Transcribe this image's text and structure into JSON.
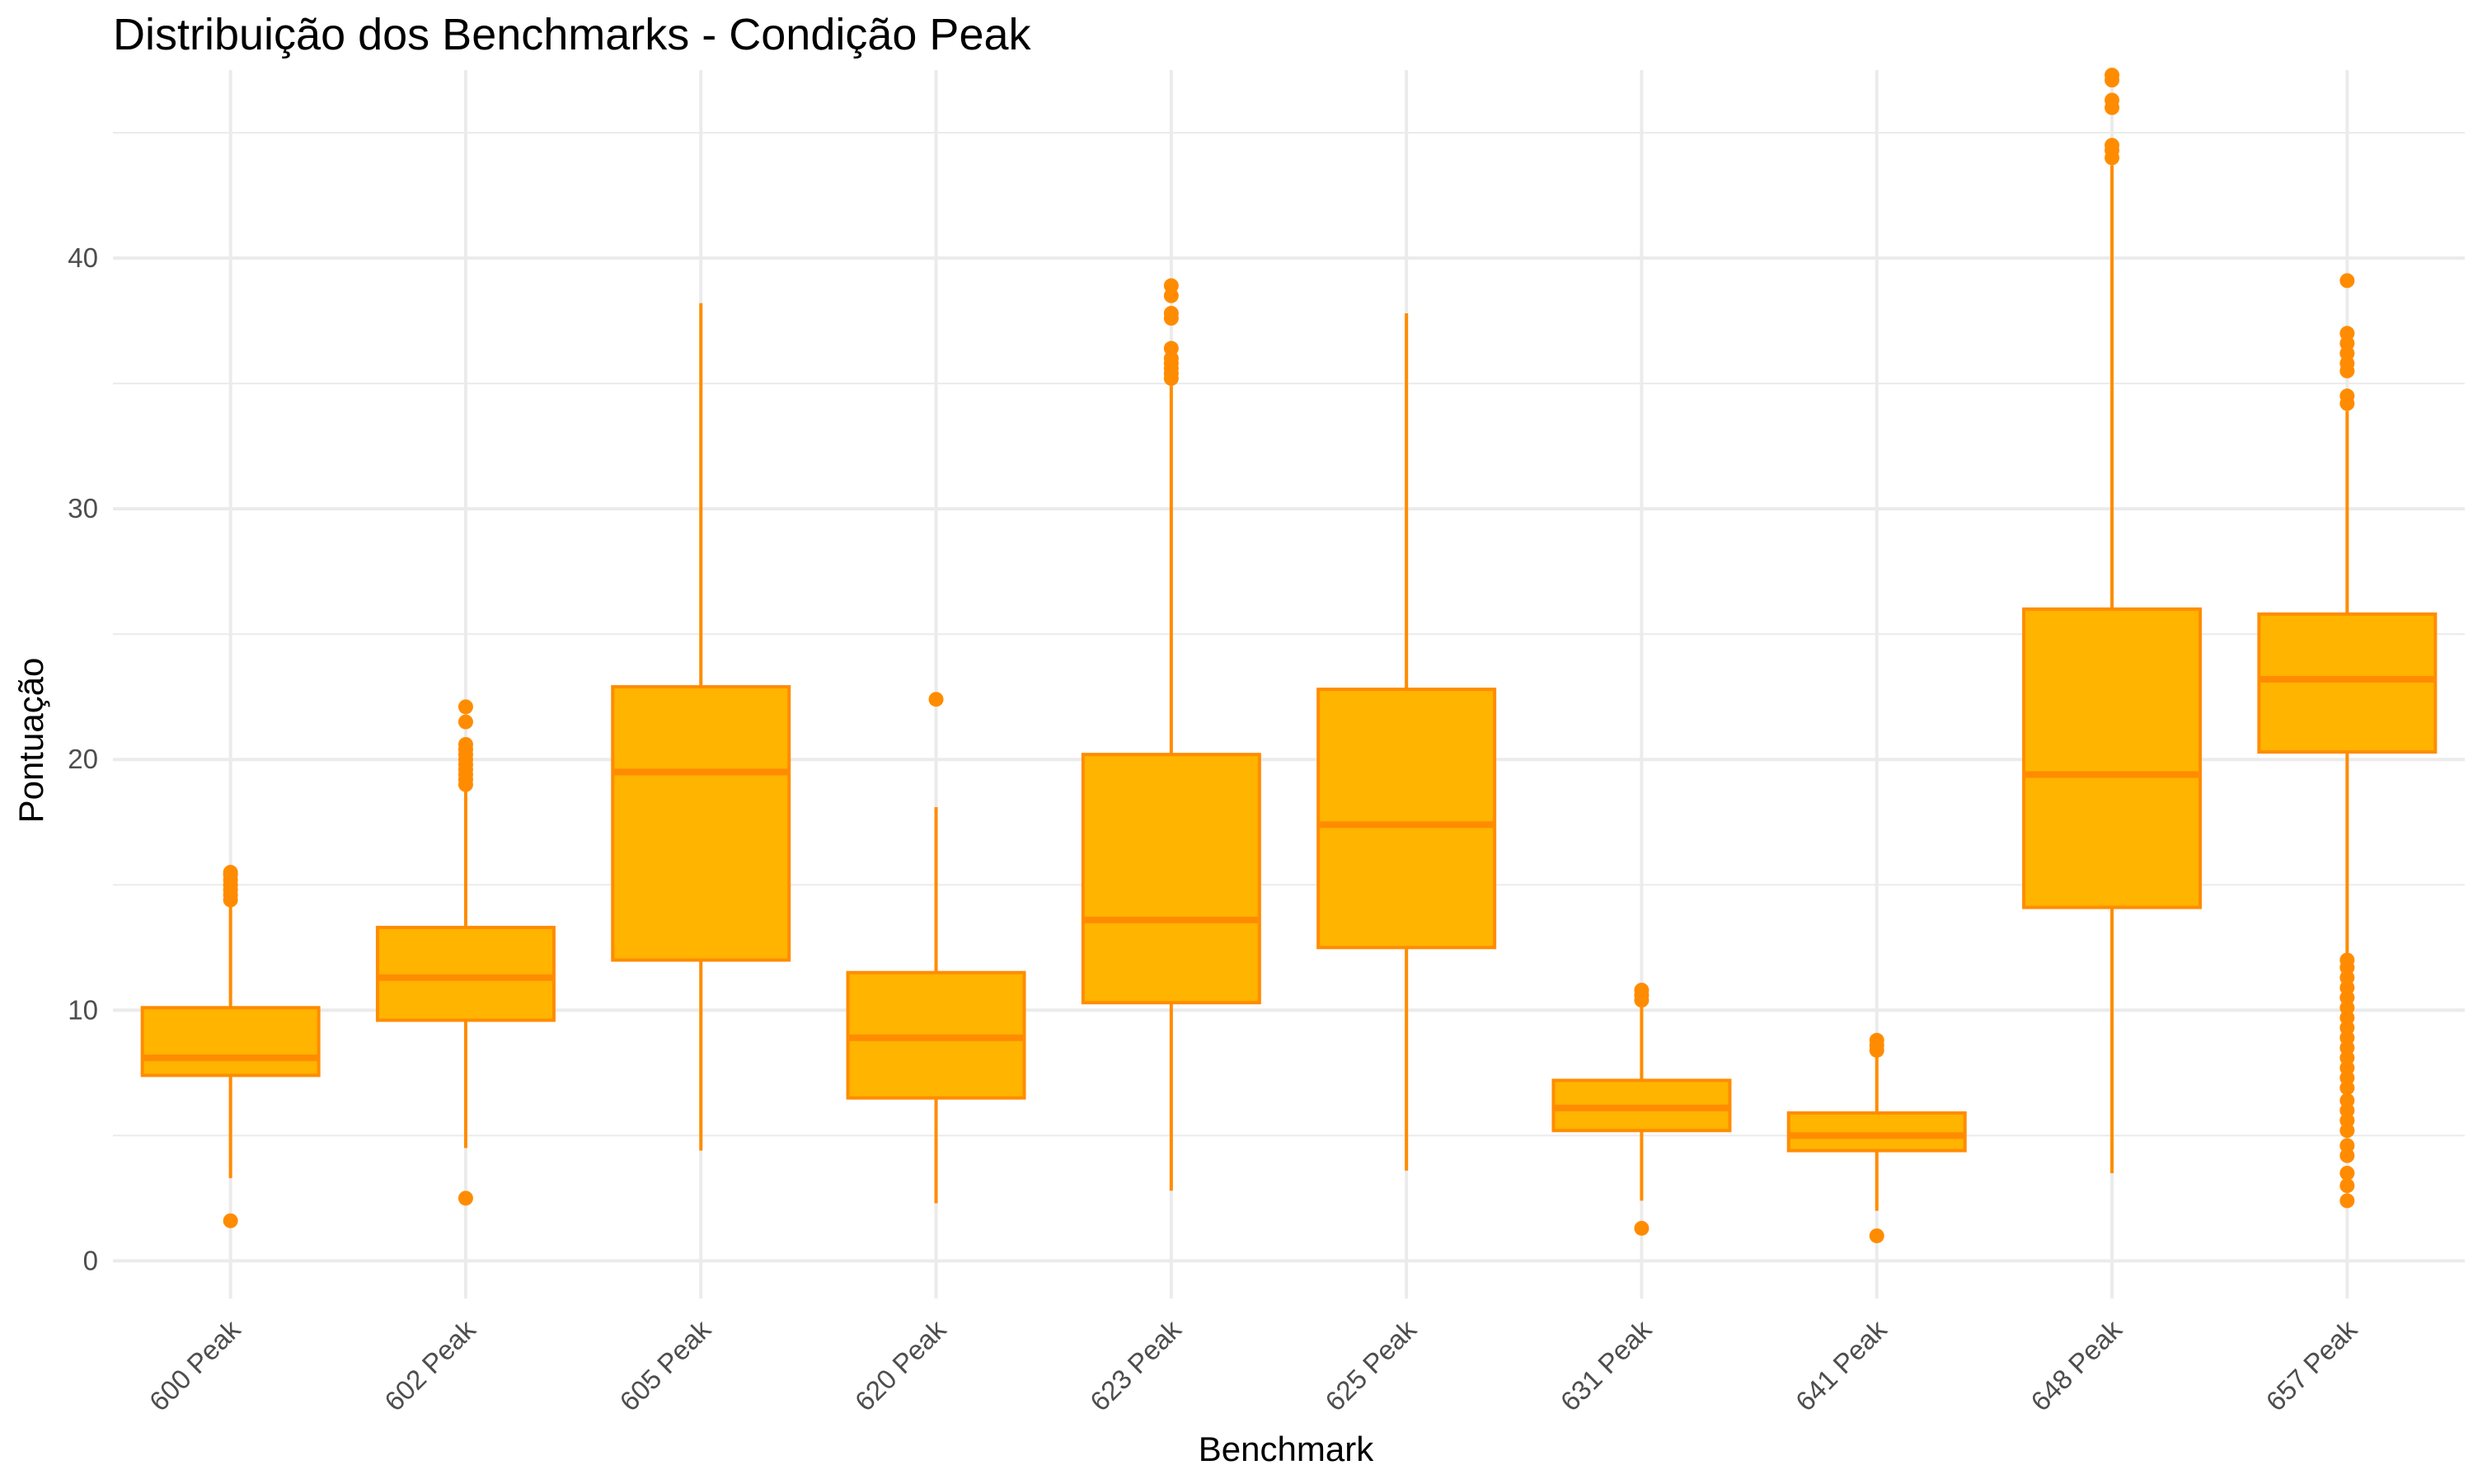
{
  "chart_data": {
    "type": "boxplot",
    "title": "Distribuição dos Benchmarks - Condição Peak",
    "xlabel": "Benchmark",
    "ylabel": "Pontuação",
    "ylim": [
      -1.5,
      47.5
    ],
    "yticks": [
      0,
      10,
      20,
      30,
      40
    ],
    "grid": true,
    "colors": {
      "fill": "#FFB400",
      "stroke": "#FF8C00",
      "grid": "#EBEBEB"
    },
    "categories": [
      "600 Peak",
      "602 Peak",
      "605 Peak",
      "620 Peak",
      "623 Peak",
      "625 Peak",
      "631 Peak",
      "641 Peak",
      "648 Peak",
      "657 Peak"
    ],
    "boxes": [
      {
        "category": "600 Peak",
        "q1": 7.4,
        "median": 8.1,
        "q3": 10.1,
        "whisker_low": 3.3,
        "whisker_high": 14.2,
        "outliers": [
          1.6,
          14.4,
          14.6,
          14.8,
          15.0,
          15.2,
          15.4,
          15.5
        ]
      },
      {
        "category": "602 Peak",
        "q1": 9.6,
        "median": 11.3,
        "q3": 13.3,
        "whisker_low": 4.5,
        "whisker_high": 18.8,
        "outliers": [
          2.5,
          19.0,
          19.2,
          19.4,
          19.6,
          19.8,
          20.0,
          20.2,
          20.4,
          20.6,
          21.5,
          22.1
        ]
      },
      {
        "category": "605 Peak",
        "q1": 12.0,
        "median": 19.5,
        "q3": 22.9,
        "whisker_low": 4.4,
        "whisker_high": 38.2,
        "outliers": []
      },
      {
        "category": "620 Peak",
        "q1": 6.5,
        "median": 8.9,
        "q3": 11.5,
        "whisker_low": 2.3,
        "whisker_high": 18.1,
        "outliers": [
          22.4
        ]
      },
      {
        "category": "623 Peak",
        "q1": 10.3,
        "median": 13.6,
        "q3": 20.2,
        "whisker_low": 2.8,
        "whisker_high": 34.9,
        "outliers": [
          35.2,
          35.4,
          35.6,
          35.8,
          36.0,
          36.4,
          37.6,
          37.8,
          38.5,
          38.9
        ]
      },
      {
        "category": "625 Peak",
        "q1": 12.5,
        "median": 17.4,
        "q3": 22.8,
        "whisker_low": 3.6,
        "whisker_high": 37.8,
        "outliers": []
      },
      {
        "category": "631 Peak",
        "q1": 5.2,
        "median": 6.1,
        "q3": 7.2,
        "whisker_low": 2.4,
        "whisker_high": 10.2,
        "outliers": [
          1.3,
          10.4,
          10.6,
          10.8
        ]
      },
      {
        "category": "641 Peak",
        "q1": 4.4,
        "median": 5.0,
        "q3": 5.9,
        "whisker_low": 2.0,
        "whisker_high": 8.2,
        "outliers": [
          1.0,
          8.4,
          8.6,
          8.8
        ]
      },
      {
        "category": "648 Peak",
        "q1": 14.1,
        "median": 19.4,
        "q3": 26.0,
        "whisker_low": 3.5,
        "whisker_high": 43.7,
        "outliers": [
          44.0,
          44.3,
          44.5,
          46.0,
          46.3,
          47.1,
          47.3
        ]
      },
      {
        "category": "657 Peak",
        "q1": 20.3,
        "median": 23.2,
        "q3": 25.8,
        "whisker_low": 12.1,
        "whisker_high": 33.9,
        "outliers": [
          2.4,
          3.0,
          3.5,
          4.2,
          4.6,
          5.2,
          5.6,
          6.0,
          6.4,
          6.9,
          7.3,
          7.7,
          8.1,
          8.5,
          8.9,
          9.3,
          9.7,
          10.1,
          10.5,
          10.9,
          11.3,
          11.7,
          12.0,
          34.2,
          34.5,
          35.5,
          35.8,
          36.2,
          36.6,
          37.0,
          39.1
        ]
      }
    ]
  }
}
